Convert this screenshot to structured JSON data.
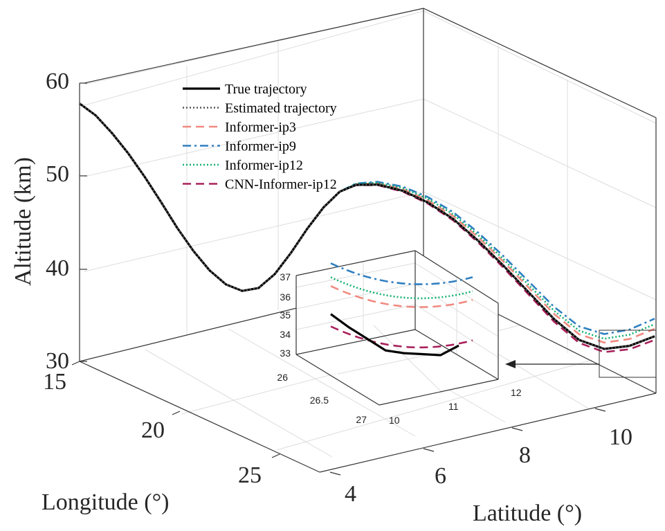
{
  "chart_data": {
    "type": "line",
    "zlabel": "Altitude (km)",
    "xlabel": "Longitude (°)",
    "ylabel": "Latitude (°)",
    "z_ticks": [
      "30",
      "40",
      "50",
      "60"
    ],
    "lon_ticks": [
      "15",
      "20",
      "25"
    ],
    "lat_ticks": [
      "4",
      "6",
      "8",
      "10"
    ],
    "zlim": [
      30,
      60
    ],
    "grid": true,
    "legend_position": "top-left",
    "series": [
      {
        "name": "True trajectory",
        "color": "#000000",
        "dash": "solid",
        "zoffset": 0
      },
      {
        "name": "Estimated trajectory",
        "color": "#555555",
        "dash": "dotted",
        "zoffset": 0
      },
      {
        "name": "Informer-ip3",
        "color": "#f08a80",
        "dash": "dashed",
        "zoffset": 0.8
      },
      {
        "name": "Informer-ip9",
        "color": "#2f7fc1",
        "dash": "dashdot",
        "zoffset": 1.9
      },
      {
        "name": "Informer-ip12",
        "color": "#10b070",
        "dash": "dotted",
        "zoffset": 1.3
      },
      {
        "name": "CNN-Informer-ip12",
        "color": "#a8205a",
        "dash": "dashed",
        "zoffset": -0.4
      }
    ],
    "trajectory_altitude": [
      57.8,
      56.5,
      54.6,
      52.4,
      49.9,
      47.2,
      44.4,
      41.9,
      39.8,
      38.3,
      37.6,
      37.9,
      39.4,
      41.7,
      44.3,
      46.6,
      48.3,
      49.1,
      49.2,
      48.6,
      47.4,
      45.7,
      43.4,
      40.8,
      38.0,
      35.2,
      33.0,
      32.1,
      32.5,
      33.6
    ],
    "inset": {
      "z_ticks": [
        "33",
        "34",
        "35",
        "36",
        "37"
      ],
      "lon_ticks": [
        "26",
        "26.5",
        "27"
      ],
      "lat_ticks": [
        "10",
        "11",
        "12"
      ],
      "true_altitude": [
        34.8,
        34.1,
        33.5,
        32.9,
        32.8,
        32.8,
        32.8,
        33.4
      ]
    }
  }
}
